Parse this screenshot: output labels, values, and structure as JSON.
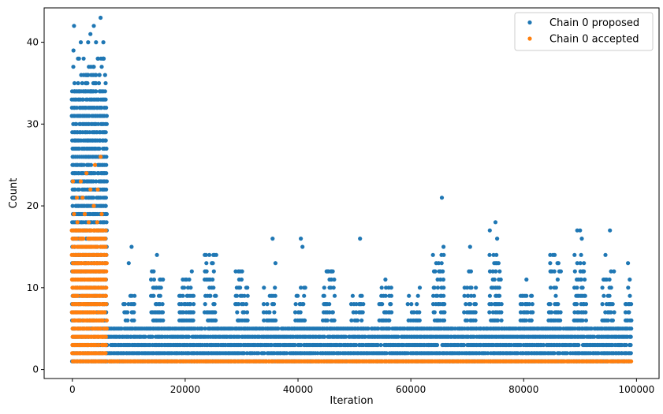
{
  "chart_data": {
    "type": "scatter",
    "title": "",
    "xlabel": "Iteration",
    "ylabel": "Count",
    "xlim": [
      -5000,
      104000
    ],
    "ylim": [
      -1.1,
      44.2
    ],
    "xticks": [
      0,
      20000,
      40000,
      60000,
      80000,
      100000
    ],
    "xtick_labels": [
      "0",
      "20000",
      "40000",
      "60000",
      "80000",
      "100000"
    ],
    "yticks": [
      0,
      10,
      20,
      30,
      40
    ],
    "ytick_labels": [
      "0",
      "10",
      "20",
      "30",
      "40"
    ],
    "grid": false,
    "legend_position": "top-right",
    "series": [
      {
        "name": "Chain 0 proposed",
        "color": "#1f77b4",
        "marker": "dot",
        "bands": [
          {
            "x": [
              0,
              6000
            ],
            "y_min": 1,
            "y_max": 34,
            "density": 0.9
          },
          {
            "x": [
              6000,
              99000
            ],
            "y_min": 1,
            "y_max": 5,
            "density": 0.95
          }
        ],
        "clusters": [
          {
            "x": [
              9000,
              11000
            ],
            "y_max": 9
          },
          {
            "x": [
              14000,
              16000
            ],
            "y_max": 12
          },
          {
            "x": [
              19000,
              21500
            ],
            "y_max": 12
          },
          {
            "x": [
              23500,
              25500
            ],
            "y_max": 14
          },
          {
            "x": [
              29000,
              31000
            ],
            "y_max": 12
          },
          {
            "x": [
              34000,
              36000
            ],
            "y_max": 11
          },
          {
            "x": [
              39500,
              41500
            ],
            "y_max": 10
          },
          {
            "x": [
              44500,
              46500
            ],
            "y_max": 12
          },
          {
            "x": [
              49500,
              51500
            ],
            "y_max": 9
          },
          {
            "x": [
              54500,
              56500
            ],
            "y_max": 10
          },
          {
            "x": [
              59500,
              61500
            ],
            "y_max": 10
          },
          {
            "x": [
              64000,
              66000
            ],
            "y_max": 14
          },
          {
            "x": [
              69500,
              71500
            ],
            "y_max": 12
          },
          {
            "x": [
              74000,
              76000
            ],
            "y_max": 14
          },
          {
            "x": [
              79500,
              81500
            ],
            "y_max": 9
          },
          {
            "x": [
              84500,
              86500
            ],
            "y_max": 14
          },
          {
            "x": [
              89000,
              91000
            ],
            "y_max": 14
          },
          {
            "x": [
              94000,
              96000
            ],
            "y_max": 12
          },
          {
            "x": [
              98000,
              99000
            ],
            "y_max": 10
          }
        ],
        "outliers": [
          {
            "x": 300,
            "y": 42
          },
          {
            "x": 1500,
            "y": 40
          },
          {
            "x": 2800,
            "y": 40
          },
          {
            "x": 3200,
            "y": 41
          },
          {
            "x": 3800,
            "y": 42
          },
          {
            "x": 4200,
            "y": 40
          },
          {
            "x": 5000,
            "y": 43
          },
          {
            "x": 5500,
            "y": 40
          },
          {
            "x": 200,
            "y": 39
          },
          {
            "x": 2000,
            "y": 38
          },
          {
            "x": 4500,
            "y": 38
          },
          {
            "x": 5200,
            "y": 37
          },
          {
            "x": 1000,
            "y": 38
          },
          {
            "x": 4800,
            "y": 36
          },
          {
            "x": 2500,
            "y": 36
          },
          {
            "x": 10000,
            "y": 13
          },
          {
            "x": 10500,
            "y": 15
          },
          {
            "x": 15000,
            "y": 14
          },
          {
            "x": 25000,
            "y": 14
          },
          {
            "x": 25500,
            "y": 14
          },
          {
            "x": 35500,
            "y": 16
          },
          {
            "x": 36000,
            "y": 13
          },
          {
            "x": 40500,
            "y": 16
          },
          {
            "x": 40800,
            "y": 15
          },
          {
            "x": 51000,
            "y": 16
          },
          {
            "x": 55500,
            "y": 11
          },
          {
            "x": 65500,
            "y": 21
          },
          {
            "x": 65800,
            "y": 15
          },
          {
            "x": 70500,
            "y": 15
          },
          {
            "x": 74000,
            "y": 17
          },
          {
            "x": 75000,
            "y": 18
          },
          {
            "x": 75300,
            "y": 16
          },
          {
            "x": 80500,
            "y": 11
          },
          {
            "x": 85500,
            "y": 14
          },
          {
            "x": 89500,
            "y": 17
          },
          {
            "x": 90000,
            "y": 17
          },
          {
            "x": 90300,
            "y": 16
          },
          {
            "x": 94500,
            "y": 14
          },
          {
            "x": 95300,
            "y": 17
          },
          {
            "x": 98500,
            "y": 13
          },
          {
            "x": 98800,
            "y": 11
          }
        ]
      },
      {
        "name": "Chain 0 accepted",
        "color": "#ff7f0e",
        "marker": "dot",
        "bands": [
          {
            "x": [
              0,
              6000
            ],
            "y_min": 1,
            "y_max": 17,
            "density": 0.95
          },
          {
            "x": [
              6500,
              99000
            ],
            "y_min": 1,
            "y_max": 1,
            "density": 1.0
          }
        ],
        "outliers": [
          {
            "x": 100,
            "y": 23
          },
          {
            "x": 1500,
            "y": 23
          },
          {
            "x": 2500,
            "y": 24
          },
          {
            "x": 3200,
            "y": 22
          },
          {
            "x": 4000,
            "y": 25
          },
          {
            "x": 5000,
            "y": 26
          },
          {
            "x": 800,
            "y": 21
          },
          {
            "x": 1800,
            "y": 21
          },
          {
            "x": 4500,
            "y": 22
          },
          {
            "x": 300,
            "y": 19
          },
          {
            "x": 2200,
            "y": 19
          },
          {
            "x": 3800,
            "y": 20
          },
          {
            "x": 5200,
            "y": 19
          },
          {
            "x": 900,
            "y": 18
          },
          {
            "x": 2900,
            "y": 18
          },
          {
            "x": 4400,
            "y": 18
          }
        ]
      }
    ]
  }
}
